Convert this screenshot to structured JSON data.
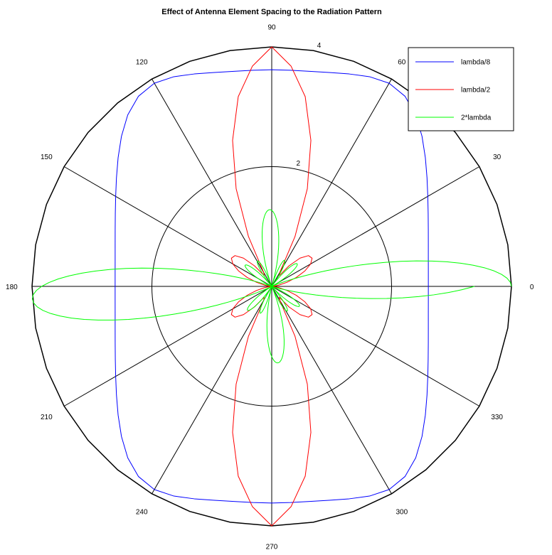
{
  "chart_data": {
    "type": "line",
    "polar": true,
    "title": "Effect of Antenna Element Spacing to the Radiation Pattern",
    "xlabel": "",
    "ylabel": "",
    "angle_unit": "degrees",
    "rlim": [
      0,
      4
    ],
    "radial_ticks": [
      2,
      4
    ],
    "angle_ticks": [
      0,
      30,
      60,
      90,
      120,
      150,
      180,
      210,
      240,
      270,
      300,
      330
    ],
    "angle_tick_labels": [
      "0",
      "30",
      "60",
      "90",
      "120",
      "150",
      "180",
      "210",
      "240",
      "270",
      "300",
      "330"
    ],
    "grid": true,
    "legend": {
      "position": "top-right",
      "entries": [
        "lambda/8",
        "lambda/2",
        "2*lambda"
      ]
    },
    "series": [
      {
        "name": "lambda/8",
        "color": "#0000ff",
        "theta": [
          0,
          5,
          10,
          15,
          20,
          25,
          30,
          35,
          40,
          45,
          50,
          55,
          60,
          65,
          70,
          75,
          80,
          85,
          90,
          95,
          100,
          105,
          110,
          115,
          120,
          125,
          130,
          135,
          140,
          145,
          150,
          155,
          160,
          165,
          170,
          175,
          180,
          185,
          190,
          195,
          200,
          205,
          210,
          215,
          220,
          225,
          230,
          235,
          240,
          245,
          250,
          255,
          260,
          265,
          270,
          275,
          280,
          285,
          290,
          295,
          300,
          305,
          310,
          315,
          320,
          325,
          330,
          335,
          340,
          345,
          350,
          355,
          360
        ],
        "r": [
          2.613,
          2.623,
          2.653,
          2.705,
          2.78,
          2.88,
          3.007,
          3.163,
          3.346,
          3.546,
          3.738,
          3.877,
          3.918,
          3.864,
          3.776,
          3.699,
          3.648,
          3.623,
          3.618,
          3.623,
          3.648,
          3.699,
          3.776,
          3.864,
          3.918,
          3.877,
          3.738,
          3.546,
          3.346,
          3.163,
          3.007,
          2.88,
          2.78,
          2.705,
          2.653,
          2.623,
          2.613,
          2.623,
          2.653,
          2.705,
          2.78,
          2.88,
          3.007,
          3.163,
          3.346,
          3.546,
          3.738,
          3.877,
          3.918,
          3.864,
          3.776,
          3.699,
          3.648,
          3.623,
          3.618,
          3.623,
          3.648,
          3.699,
          3.776,
          3.864,
          3.918,
          3.877,
          3.738,
          3.546,
          3.346,
          3.163,
          3.007,
          2.88,
          2.78,
          2.705,
          2.653,
          2.623,
          2.613
        ]
      },
      {
        "name": "lambda/2",
        "color": "#ff0000",
        "theta": [
          0,
          5,
          10,
          15,
          20,
          25,
          30,
          35,
          40,
          45,
          50,
          55,
          60,
          65,
          70,
          75,
          80,
          85,
          90,
          95,
          100,
          105,
          110,
          115,
          120,
          125,
          130,
          135,
          140,
          145,
          150,
          155,
          160,
          165,
          170,
          175,
          180,
          185,
          190,
          195,
          200,
          205,
          210,
          215,
          220,
          225,
          230,
          235,
          240,
          245,
          250,
          255,
          260,
          265,
          270,
          275,
          280,
          285,
          290,
          295,
          300,
          305,
          310,
          315,
          320,
          325,
          330,
          335,
          340,
          345,
          350,
          355,
          360
        ],
        "r": [
          0.0,
          0.029,
          0.119,
          0.261,
          0.436,
          0.611,
          0.75,
          0.822,
          0.8,
          0.667,
          0.447,
          0.221,
          0.268,
          0.919,
          1.737,
          2.524,
          3.218,
          3.694,
          4.0,
          3.694,
          3.218,
          2.524,
          1.737,
          0.919,
          0.268,
          0.221,
          0.447,
          0.667,
          0.8,
          0.822,
          0.75,
          0.611,
          0.436,
          0.261,
          0.119,
          0.029,
          0.0,
          0.029,
          0.119,
          0.261,
          0.436,
          0.611,
          0.75,
          0.822,
          0.8,
          0.667,
          0.447,
          0.221,
          0.268,
          0.919,
          1.737,
          2.524,
          3.218,
          3.694,
          4.0,
          3.694,
          3.218,
          2.524,
          1.737,
          0.919,
          0.268,
          0.221,
          0.447,
          0.667,
          0.8,
          0.822,
          0.75,
          0.611,
          0.436,
          0.261,
          0.119,
          0.029,
          0.0
        ]
      },
      {
        "name": "2*lambda",
        "color": "#00ff00",
        "theta": [
          0,
          1,
          2,
          3,
          4,
          5,
          6,
          7,
          8,
          9,
          10,
          11,
          12,
          13,
          14,
          15,
          16,
          17,
          18,
          19,
          20,
          21,
          22,
          23,
          24,
          25,
          26,
          27,
          28,
          29,
          30,
          31,
          32,
          33,
          34,
          35,
          36,
          37,
          38,
          39,
          40,
          41,
          42,
          43,
          44,
          45,
          46,
          47,
          48,
          49,
          50,
          51,
          52,
          53,
          54,
          55,
          56,
          57,
          58,
          59,
          60,
          61,
          62,
          63,
          64,
          65,
          66,
          67,
          68,
          69,
          70,
          71,
          72,
          73,
          74,
          75,
          76,
          77,
          78,
          79,
          80,
          81,
          82,
          83,
          84,
          85,
          86,
          87,
          88,
          89,
          90,
          91,
          92,
          93,
          94,
          95,
          96,
          97,
          98,
          99,
          100,
          101,
          102,
          103,
          104,
          105,
          106,
          107,
          108,
          109,
          110,
          111,
          112,
          113,
          114,
          115,
          116,
          117,
          118,
          119,
          120,
          121,
          122,
          123,
          124,
          125,
          126,
          127,
          128,
          129,
          130,
          131,
          132,
          133,
          134,
          135,
          136,
          137,
          138,
          139,
          140,
          141,
          142,
          143,
          144,
          145,
          146,
          147,
          148,
          149,
          150,
          151,
          152,
          153,
          154,
          155,
          156,
          157,
          158,
          159,
          160,
          161,
          162,
          163,
          164,
          165,
          166,
          167,
          168,
          169,
          170,
          171,
          172,
          173,
          174,
          175,
          176,
          177,
          178,
          179,
          180,
          181,
          182,
          183,
          184,
          185,
          186,
          187,
          188,
          189,
          190,
          191,
          192,
          193,
          194,
          195,
          196,
          197,
          198,
          199,
          200,
          201,
          202,
          203,
          204,
          205,
          206,
          207,
          208,
          209,
          210,
          211,
          212,
          213,
          214,
          215,
          216,
          217,
          218,
          219,
          220,
          221,
          222,
          223,
          224,
          225,
          226,
          227,
          228,
          229,
          230,
          231,
          232,
          233,
          234,
          235,
          236,
          237,
          238,
          239,
          240,
          241,
          242,
          243,
          244,
          245,
          246,
          247,
          248,
          249,
          250,
          251,
          252,
          253,
          254,
          255,
          256,
          257,
          258,
          259,
          260,
          261,
          262,
          263,
          264,
          265,
          266,
          267,
          268,
          269,
          270,
          271,
          272,
          273,
          274,
          275,
          276,
          277,
          278,
          279,
          280,
          281,
          282,
          283,
          284,
          285,
          286,
          287,
          288,
          289,
          290,
          291,
          292,
          293,
          294,
          295,
          296,
          297,
          298,
          299,
          300,
          301,
          302,
          303,
          304,
          305,
          306,
          307,
          308,
          309,
          310,
          311,
          312,
          313,
          314,
          315,
          316,
          317,
          318,
          319,
          320,
          321,
          322,
          323,
          324,
          325,
          326,
          327,
          328,
          329,
          330,
          331,
          332,
          333,
          334,
          335,
          336,
          337,
          338,
          339,
          340,
          341,
          342,
          343,
          344,
          345,
          346,
          347,
          348,
          349,
          350,
          351,
          352,
          353,
          354,
          355,
          356,
          357,
          358,
          359,
          360
        ],
        "r": [
          4.0,
          3.982,
          3.928,
          3.839,
          3.717,
          3.564,
          3.382,
          3.176,
          2.95,
          2.707,
          2.453,
          2.192,
          1.93,
          1.671,
          1.42,
          1.181,
          0.957,
          0.752,
          0.568,
          0.407,
          0.271,
          0.161,
          0.077,
          0.019,
          0.014,
          0.024,
          0.02,
          0.005,
          0.018,
          0.053,
          0.097,
          0.148,
          0.203,
          0.261,
          0.318,
          0.373,
          0.423,
          0.468,
          0.505,
          0.535,
          0.555,
          0.566,
          0.567,
          0.559,
          0.541,
          0.514,
          0.478,
          0.434,
          0.383,
          0.325,
          0.262,
          0.194,
          0.123,
          0.049,
          0.025,
          0.099,
          0.171,
          0.239,
          0.302,
          0.358,
          0.405,
          0.442,
          0.469,
          0.484,
          0.487,
          0.478,
          0.457,
          0.424,
          0.379,
          0.324,
          0.259,
          0.185,
          0.104,
          0.017,
          0.075,
          0.17,
          0.268,
          0.367,
          0.466,
          0.564,
          0.659,
          0.751,
          0.838,
          0.92,
          0.995,
          1.063,
          1.123,
          1.174,
          1.216,
          1.248,
          1.27,
          1.281,
          1.281,
          1.27,
          1.248,
          1.216,
          1.174,
          1.123,
          1.063,
          0.995,
          0.92,
          0.838,
          0.751,
          0.659,
          0.564,
          0.466,
          0.367,
          0.268,
          0.17,
          0.075,
          0.017,
          0.104,
          0.185,
          0.259,
          0.324,
          0.379,
          0.424,
          0.457,
          0.478,
          0.487,
          0.484,
          0.469,
          0.442,
          0.405,
          0.358,
          0.302,
          0.239,
          0.171,
          0.099,
          0.025,
          0.049,
          0.123,
          0.194,
          0.262,
          0.325,
          0.383,
          0.434,
          0.478,
          0.514,
          0.541,
          0.559,
          0.567,
          0.566,
          0.555,
          0.535,
          0.505,
          0.468,
          0.423,
          0.373,
          0.318,
          0.261,
          0.203,
          0.148,
          0.097,
          0.053,
          0.018,
          0.005,
          0.02,
          0.024,
          0.014,
          0.019,
          0.077,
          0.161,
          0.271,
          0.407,
          0.568,
          0.752,
          0.957,
          1.181,
          1.42,
          1.671,
          1.93,
          2.192,
          2.453,
          2.707,
          2.95,
          3.176,
          3.382,
          3.564,
          3.717,
          3.839,
          3.928,
          3.982,
          4.0,
          3.982,
          3.928,
          3.839,
          3.717,
          3.564,
          3.382,
          3.176,
          2.95,
          2.707,
          2.453,
          2.192,
          1.93,
          1.671,
          1.42,
          1.181,
          0.957,
          0.752,
          0.568,
          0.407,
          0.271,
          0.161,
          0.077,
          0.019,
          0.014,
          0.024,
          0.02,
          0.005,
          0.018,
          0.053,
          0.097,
          0.148,
          0.203,
          0.261,
          0.318,
          0.373,
          0.423,
          0.468,
          0.505,
          0.535,
          0.555,
          0.566,
          0.567,
          0.559,
          0.541,
          0.514,
          0.478,
          0.434,
          0.383,
          0.325,
          0.262,
          0.194,
          0.123,
          0.049,
          0.025,
          0.099,
          0.171,
          0.239,
          0.302,
          0.358,
          0.405,
          0.442,
          0.469,
          0.484,
          0.487,
          0.478,
          0.457,
          0.424,
          0.379,
          0.324,
          0.259,
          0.185,
          0.104,
          0.017,
          0.075,
          0.17,
          0.268,
          0.367,
          0.466,
          0.564,
          0.659,
          0.751,
          0.838,
          0.92,
          0.995,
          1.063,
          1.123,
          1.174,
          1.216,
          1.248,
          1.27,
          1.281,
          1.281,
          1.27,
          1.248,
          1.216,
          1.174,
          1.123,
          1.063,
          0.995,
          0.92,
          0.838,
          0.751,
          0.659,
          0.564,
          0.466,
          0.367,
          0.268,
          0.17,
          0.075,
          0.017,
          0.104,
          0.185,
          0.259,
          0.324,
          0.379,
          0.424,
          0.457,
          0.478,
          0.487,
          0.484,
          0.469,
          0.442,
          0.405,
          0.358,
          0.302,
          0.239,
          0.171,
          0.099,
          0.025,
          0.049,
          0.123,
          0.194,
          0.262,
          0.325,
          0.383,
          0.434,
          0.478,
          0.514,
          0.541,
          0.559,
          0.567,
          0.566,
          0.555,
          0.535,
          0.505,
          0.468,
          0.423,
          0.373,
          0.318,
          0.261,
          0.203,
          0.148,
          0.097,
          0.053,
          0.018,
          0.005,
          0.02,
          0.024,
          0.014,
          0.019,
          0.077,
          0.161,
          0.271,
          0.407,
          0.568,
          0.752,
          0.957,
          1.181,
          1.42,
          1.671,
          1.93,
          2.192,
          2.453,
          2.707,
          2.95,
          3.176,
          3.382,
          3.564,
          3.717,
          3.839,
          3.928,
          3.982,
          4.0
        ]
      }
    ]
  }
}
